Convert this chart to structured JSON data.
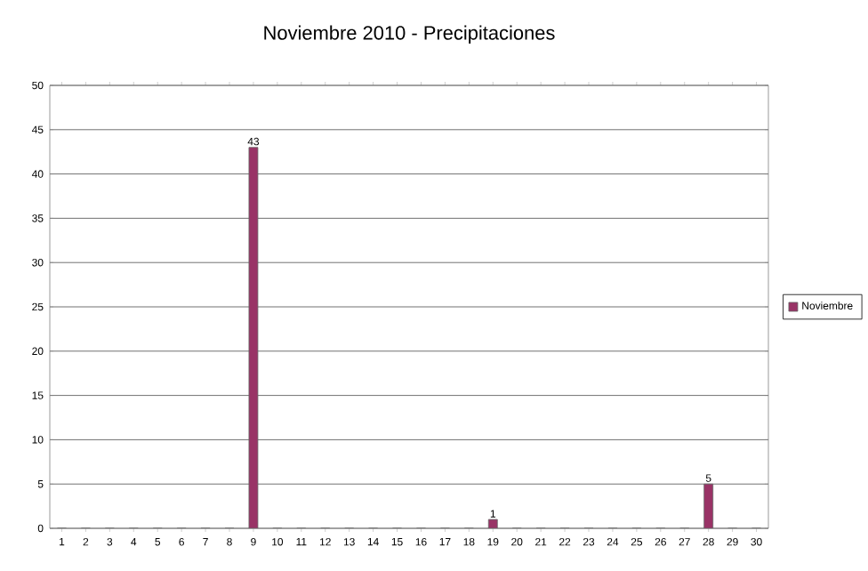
{
  "chart_data": {
    "type": "bar",
    "title": "Noviembre 2010 - Precipitaciones",
    "categories": [
      "1",
      "2",
      "3",
      "4",
      "5",
      "6",
      "7",
      "8",
      "9",
      "10",
      "11",
      "12",
      "13",
      "14",
      "15",
      "16",
      "17",
      "18",
      "19",
      "20",
      "21",
      "22",
      "23",
      "24",
      "25",
      "26",
      "27",
      "28",
      "29",
      "30"
    ],
    "series": [
      {
        "name": "Noviembre",
        "color": "#993366",
        "values": [
          0,
          0,
          0,
          0,
          0,
          0,
          0,
          0,
          43,
          0,
          0,
          0,
          0,
          0,
          0,
          0,
          0,
          0,
          1,
          0,
          0,
          0,
          0,
          0,
          0,
          0,
          0,
          5,
          0,
          0
        ],
        "value_labels": [
          null,
          null,
          null,
          null,
          null,
          null,
          null,
          null,
          "43",
          null,
          null,
          null,
          null,
          null,
          null,
          null,
          null,
          null,
          "1",
          null,
          null,
          null,
          null,
          null,
          null,
          null,
          null,
          "5",
          null,
          null
        ]
      }
    ],
    "ylim": [
      0,
      50
    ],
    "yticks": [
      0,
      5,
      10,
      15,
      20,
      25,
      30,
      35,
      40,
      45,
      50
    ],
    "grid": "y",
    "legend": "right"
  }
}
